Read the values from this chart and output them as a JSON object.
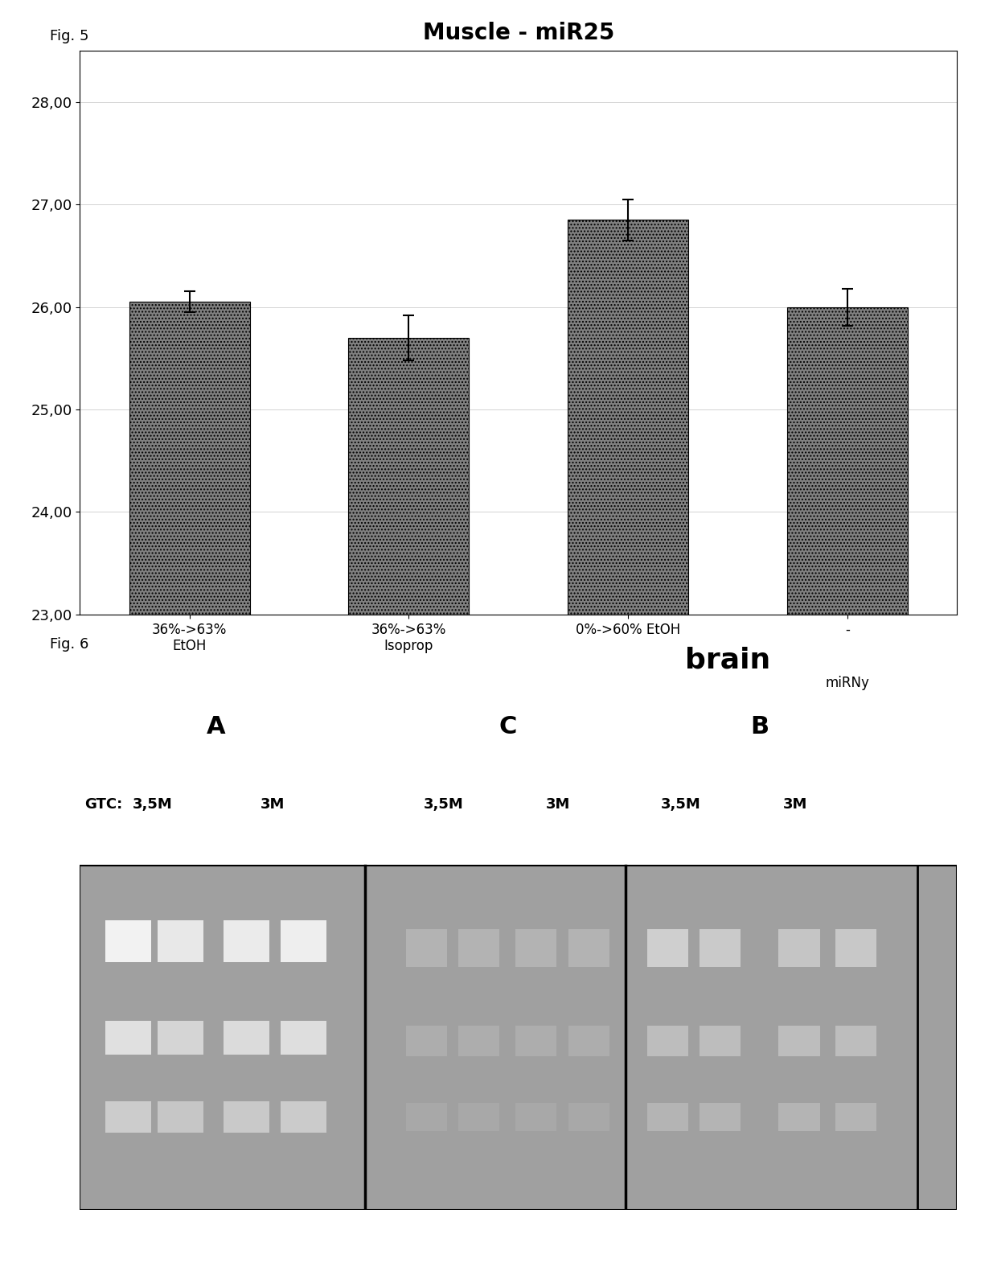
{
  "fig5": {
    "title": "Muscle - miR25",
    "categories": [
      "36%->63%\nEtOH",
      "36%->63%\nIsoprop",
      "0%->60% EtOH",
      "-"
    ],
    "values": [
      26.05,
      25.7,
      26.85,
      26.0
    ],
    "errors": [
      0.1,
      0.22,
      0.2,
      0.18
    ],
    "ylim": [
      23.0,
      28.5
    ],
    "yticks": [
      23.0,
      24.0,
      25.0,
      26.0,
      27.0,
      28.0
    ],
    "ytick_labels": [
      "23,00",
      "24,00",
      "25,00",
      "26,00",
      "27,00",
      "28,00"
    ],
    "bar_color": "#808080",
    "xlabel_extra": "miRNy",
    "fig_label": "Fig. 5"
  },
  "fig6": {
    "title": "brain",
    "fig_label": "Fig. 6",
    "group_labels": [
      "A",
      "C",
      "B"
    ],
    "gtc_label": "GTC:",
    "bg_color": "#909090"
  },
  "page_bg": "#ffffff"
}
